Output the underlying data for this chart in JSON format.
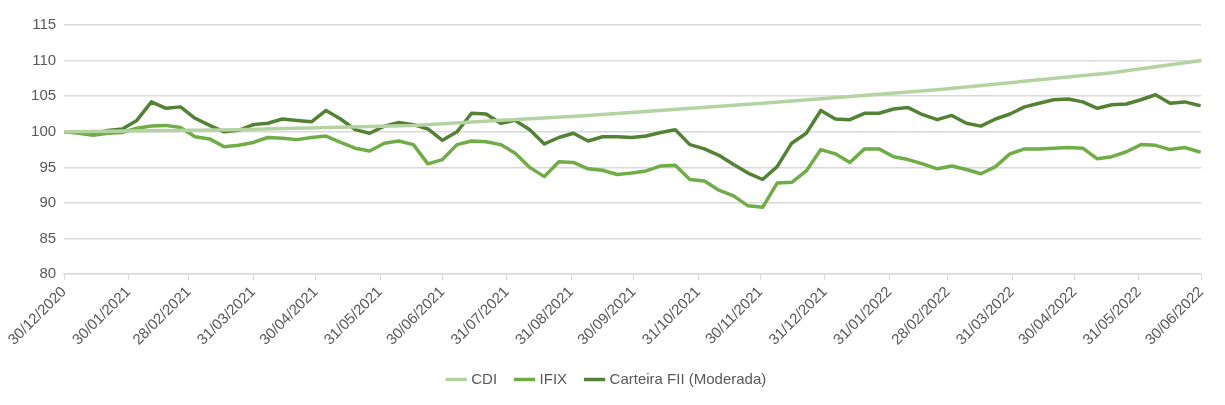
{
  "chart_data": {
    "type": "line",
    "x": [
      "2020-12-30",
      "2021-01-06",
      "2021-01-13",
      "2021-01-20",
      "2021-01-27",
      "2021-02-03",
      "2021-02-10",
      "2021-02-17",
      "2021-02-24",
      "2021-03-03",
      "2021-03-10",
      "2021-03-17",
      "2021-03-24",
      "2021-03-31",
      "2021-04-07",
      "2021-04-14",
      "2021-04-21",
      "2021-04-28",
      "2021-05-05",
      "2021-05-12",
      "2021-05-19",
      "2021-05-26",
      "2021-06-02",
      "2021-06-09",
      "2021-06-16",
      "2021-06-23",
      "2021-06-30",
      "2021-07-07",
      "2021-07-14",
      "2021-07-21",
      "2021-07-28",
      "2021-08-04",
      "2021-08-11",
      "2021-08-18",
      "2021-08-25",
      "2021-09-01",
      "2021-09-08",
      "2021-09-15",
      "2021-09-22",
      "2021-09-29",
      "2021-10-06",
      "2021-10-13",
      "2021-10-20",
      "2021-10-27",
      "2021-11-03",
      "2021-11-10",
      "2021-11-17",
      "2021-11-24",
      "2021-12-01",
      "2021-12-08",
      "2021-12-15",
      "2021-12-22",
      "2021-12-29",
      "2022-01-05",
      "2022-01-12",
      "2022-01-19",
      "2022-01-26",
      "2022-02-02",
      "2022-02-09",
      "2022-02-16",
      "2022-02-23",
      "2022-03-02",
      "2022-03-09",
      "2022-03-16",
      "2022-03-23",
      "2022-03-30",
      "2022-04-06",
      "2022-04-13",
      "2022-04-20",
      "2022-04-27",
      "2022-05-04",
      "2022-05-11",
      "2022-05-18",
      "2022-05-25",
      "2022-06-01",
      "2022-06-08",
      "2022-06-15",
      "2022-06-22",
      "2022-06-29"
    ],
    "series": [
      {
        "name": "CDI",
        "color": "#b5d3a2",
        "x": [
          "2020-12-30",
          "2021-03-24",
          "2021-06-16",
          "2021-09-08",
          "2021-12-01",
          "2022-02-23",
          "2022-05-18",
          "2022-06-30"
        ],
        "values": [
          100,
          100.3,
          100.9,
          102.3,
          104.0,
          105.9,
          108.3,
          110
        ]
      },
      {
        "name": "IFIX",
        "color": "#70ad47",
        "values": [
          100,
          99.8,
          99.5,
          99.8,
          99.9,
          100.5,
          100.8,
          100.9,
          100.6,
          99.3,
          99,
          97.9,
          98.1,
          98.5,
          99.2,
          99.1,
          98.9,
          99.2,
          99.4,
          98.5,
          97.7,
          97.3,
          98.4,
          98.7,
          98.2,
          95.5,
          96.1,
          98.2,
          98.7,
          98.6,
          98.2,
          97,
          95,
          93.7,
          95.8,
          95.7,
          94.8,
          94.6,
          94,
          94.2,
          94.5,
          95.2,
          95.3,
          93.3,
          93.1,
          91.8,
          91,
          89.6,
          89.4,
          92.8,
          92.9,
          94.5,
          97.5,
          96.9,
          95.7,
          97.6,
          97.6,
          96.5,
          96.1,
          95.5,
          94.8,
          95.2,
          94.7,
          94.1,
          95.1,
          96.9,
          97.6,
          97.6,
          97.7,
          97.8,
          97.7,
          96.2,
          96.5,
          97.2,
          98.2,
          98.1,
          97.5,
          97.8,
          97.2
        ]
      },
      {
        "name": "Carteira FII (Moderada)",
        "color": "#548235",
        "values": [
          100,
          100,
          99.7,
          100.2,
          100.4,
          101.6,
          104.2,
          103.3,
          103.5,
          101.9,
          100.9,
          100,
          100.2,
          101,
          101.2,
          101.8,
          101.6,
          101.4,
          103,
          101.8,
          100.3,
          99.8,
          100.8,
          101.3,
          101,
          100.4,
          98.8,
          100,
          102.6,
          102.5,
          101.2,
          101.6,
          100.3,
          98.3,
          99.2,
          99.8,
          98.7,
          99.3,
          99.3,
          99.2,
          99.4,
          99.9,
          100.3,
          98.2,
          97.6,
          96.7,
          95.4,
          94.2,
          93.3,
          95.1,
          98.4,
          99.8,
          103,
          101.8,
          101.7,
          102.6,
          102.6,
          103.2,
          103.4,
          102.4,
          101.7,
          102.3,
          101.2,
          100.8,
          101.8,
          102.5,
          103.5,
          104,
          104.5,
          104.6,
          104.2,
          103.3,
          103.8,
          103.9,
          104.5,
          105.2,
          104,
          104.2,
          103.7
        ]
      }
    ],
    "xlim": [
      "2020-12-30",
      "2022-06-30"
    ],
    "xticks": [
      {
        "value": "2020-12-30",
        "label": "30/12/2020"
      },
      {
        "value": "2021-01-30",
        "label": "30/01/2021"
      },
      {
        "value": "2021-02-28",
        "label": "28/02/2021"
      },
      {
        "value": "2021-03-31",
        "label": "31/03/2021"
      },
      {
        "value": "2021-04-30",
        "label": "30/04/2021"
      },
      {
        "value": "2021-05-31",
        "label": "31/05/2021"
      },
      {
        "value": "2021-06-30",
        "label": "30/06/2021"
      },
      {
        "value": "2021-07-31",
        "label": "31/07/2021"
      },
      {
        "value": "2021-08-31",
        "label": "31/08/2021"
      },
      {
        "value": "2021-09-30",
        "label": "30/09/2021"
      },
      {
        "value": "2021-10-31",
        "label": "31/10/2021"
      },
      {
        "value": "2021-11-30",
        "label": "30/11/2021"
      },
      {
        "value": "2021-12-31",
        "label": "31/12/2021"
      },
      {
        "value": "2022-01-31",
        "label": "31/01/2022"
      },
      {
        "value": "2022-02-28",
        "label": "28/02/2022"
      },
      {
        "value": "2022-03-31",
        "label": "31/03/2022"
      },
      {
        "value": "2022-04-30",
        "label": "30/04/2022"
      },
      {
        "value": "2022-05-31",
        "label": "31/05/2022"
      },
      {
        "value": "2022-06-30",
        "label": "30/06/2022"
      }
    ],
    "ylim": [
      80,
      115
    ],
    "yticks": [
      80,
      85,
      90,
      95,
      100,
      105,
      110,
      115
    ],
    "grid": "y",
    "legend": "bottom",
    "marker": "none",
    "line_style": "solid"
  }
}
